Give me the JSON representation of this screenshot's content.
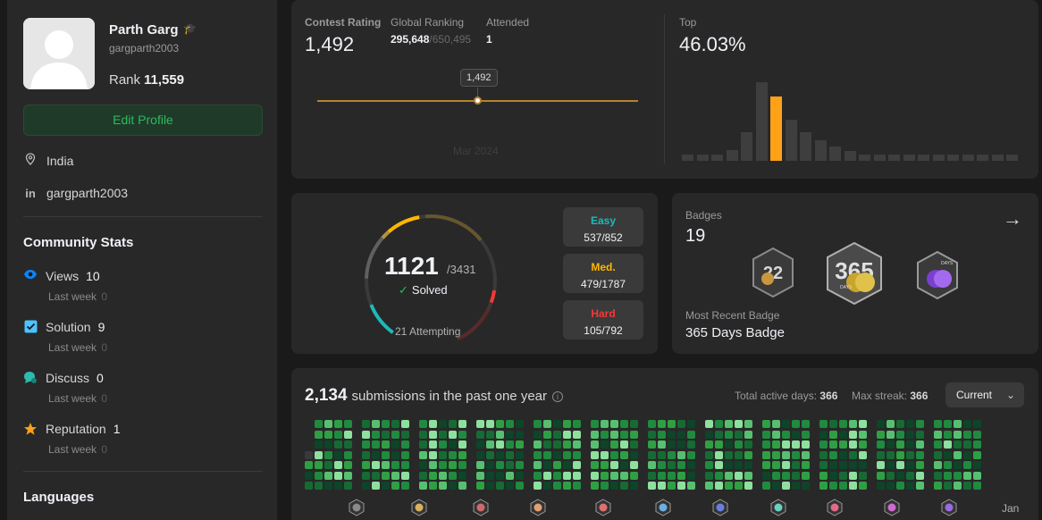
{
  "profile": {
    "name": "Parth Garg",
    "username": "gargparth2003",
    "rank_label": "Rank",
    "rank_value": "11,559",
    "edit_button": "Edit Profile",
    "location": "India",
    "linkedin": "gargparth2003"
  },
  "community": {
    "title": "Community Stats",
    "stats": [
      {
        "label": "Views",
        "value": "10",
        "sub_label": "Last week",
        "sub_value": "0",
        "icon": "eye-icon",
        "color": "#0a84ff"
      },
      {
        "label": "Solution",
        "value": "9",
        "sub_label": "Last week",
        "sub_value": "0",
        "icon": "check-square-icon",
        "color": "#4cc2ff"
      },
      {
        "label": "Discuss",
        "value": "0",
        "sub_label": "Last week",
        "sub_value": "0",
        "icon": "chat-bubble-icon",
        "color": "#2cbbad"
      },
      {
        "label": "Reputation",
        "value": "1",
        "sub_label": "Last week",
        "sub_value": "0",
        "icon": "star-icon",
        "color": "#ffa116"
      }
    ]
  },
  "languages_title": "Languages",
  "contest": {
    "rating_label": "Contest Rating",
    "rating_value": "1,492",
    "global_label": "Global Ranking",
    "global_value": "295,648",
    "global_total": "/650,495",
    "attended_label": "Attended",
    "attended_value": "1",
    "tooltip": "1,492",
    "date": "Mar 2024",
    "top_label": "Top",
    "top_value": "46.03%",
    "histogram": [
      0.08,
      0.08,
      0.08,
      0.14,
      0.36,
      1.0,
      0.82,
      0.52,
      0.36,
      0.26,
      0.18,
      0.12,
      0.08,
      0.08,
      0.08,
      0.08,
      0.08,
      0.08,
      0.08,
      0.08,
      0.08,
      0.08,
      0.08
    ],
    "histogram_highlight_index": 6,
    "highlight_color": "#ffa116"
  },
  "solved": {
    "solved_value": "1121",
    "total": "/3431",
    "solved_label": "Solved",
    "attempting": "21 Attempting",
    "easy_label": "Easy",
    "easy_value": "537/852",
    "medium_label": "Med.",
    "medium_value": "479/1787",
    "hard_label": "Hard",
    "hard_value": "105/792",
    "colors": {
      "easy": "#1cbaba",
      "medium": "#ffb700",
      "hard": "#f63737"
    }
  },
  "badges": {
    "label": "Badges",
    "count": "19",
    "recent_label": "Most Recent Badge",
    "recent_value": "365 Days Badge",
    "items": [
      {
        "name": "2022-badge-icon",
        "text": "22"
      },
      {
        "name": "365-days-badge-icon",
        "text": "365"
      },
      {
        "name": "days-purple-badge-icon",
        "text": "DAYS"
      }
    ]
  },
  "submissions": {
    "count": "2,134",
    "title_text": "submissions in the past one year",
    "active_label": "Total active days:",
    "active_value": "366",
    "streak_label": "Max streak:",
    "streak_value": "366",
    "year_select": "Current",
    "last_month": "Jan"
  }
}
